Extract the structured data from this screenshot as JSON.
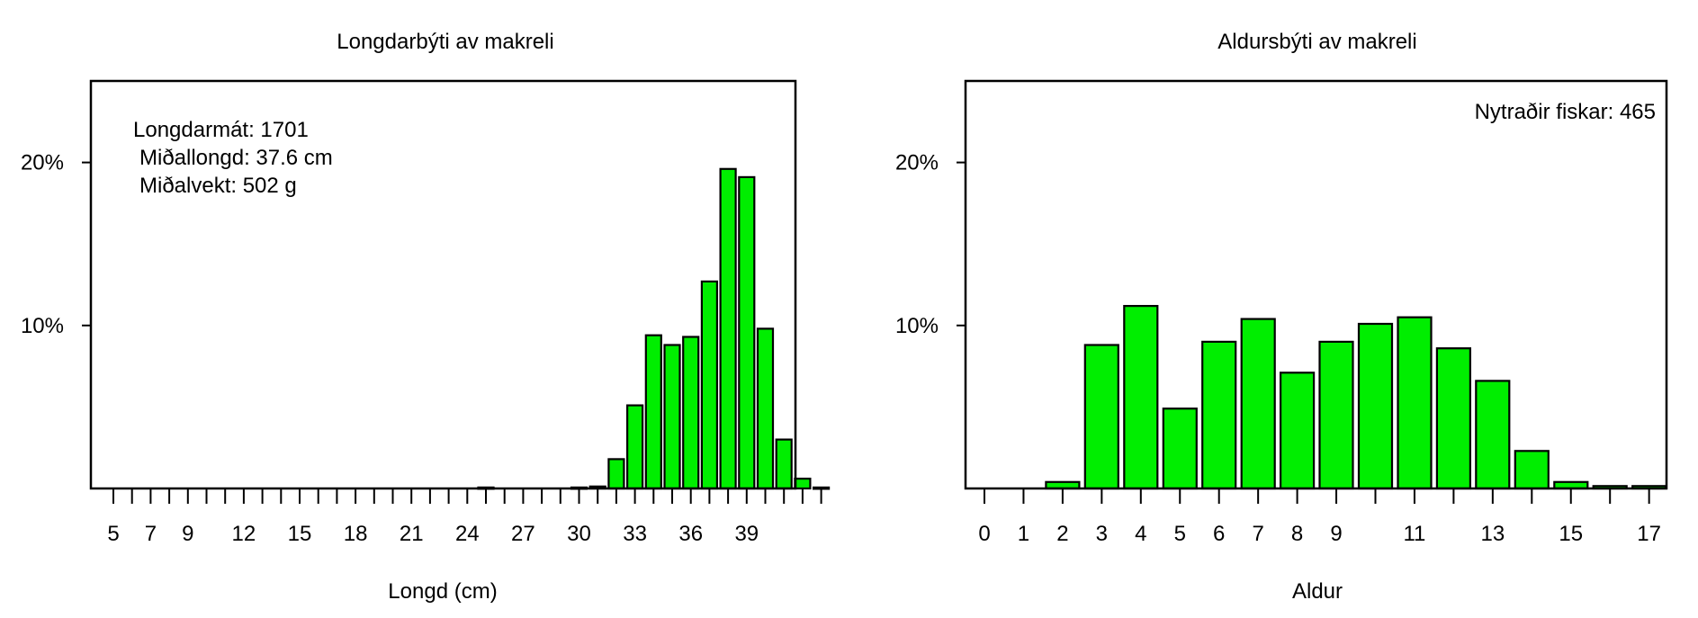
{
  "chart_data": [
    {
      "type": "bar",
      "title": "Longdarbýti av makreli",
      "xlabel": "Longd (cm)",
      "ylabel": "",
      "ylim": [
        0,
        0.25
      ],
      "yticks": [
        0.1,
        0.2
      ],
      "ytick_labels": [
        "10%",
        "20%"
      ],
      "x": [
        5,
        6,
        7,
        8,
        9,
        10,
        11,
        12,
        13,
        14,
        15,
        16,
        17,
        18,
        19,
        20,
        21,
        22,
        23,
        24,
        25,
        26,
        27,
        28,
        29,
        30,
        31,
        32,
        33,
        34,
        35,
        36,
        37,
        38,
        39,
        40,
        41,
        42,
        43
      ],
      "values": [
        0,
        0,
        0,
        0,
        0,
        0,
        0,
        0,
        0,
        0,
        0,
        0,
        0,
        0,
        0,
        0,
        0,
        0,
        0,
        0,
        0.0006,
        0,
        0,
        0,
        0,
        0.0006,
        0.0012,
        0.018,
        0.051,
        0.094,
        0.088,
        0.093,
        0.127,
        0.196,
        0.191,
        0.098,
        0.03,
        0.006,
        0.0006
      ],
      "xtick_labels": [
        "5",
        "7",
        "9",
        "12",
        "15",
        "18",
        "21",
        "24",
        "27",
        "30",
        "33",
        "36",
        "39"
      ],
      "bar_color": "#00ee00",
      "annotation": [
        "Longdarmát: 1701",
        "Miðallongd: 37.6 cm",
        "Miðalvekt: 502 g"
      ],
      "annotation_position": "top-left",
      "grid": false
    },
    {
      "type": "bar",
      "title": "Aldursbýti av makreli",
      "xlabel": "Aldur",
      "ylabel": "",
      "ylim": [
        0,
        0.25
      ],
      "yticks": [
        0.1,
        0.2
      ],
      "ytick_labels": [
        "10%",
        "20%"
      ],
      "x": [
        0,
        1,
        2,
        3,
        4,
        5,
        6,
        7,
        8,
        9,
        10,
        11,
        12,
        13,
        14,
        15,
        16,
        17
      ],
      "values": [
        0,
        0,
        0.004,
        0.088,
        0.112,
        0.049,
        0.09,
        0.104,
        0.071,
        0.09,
        0.101,
        0.105,
        0.086,
        0.066,
        0.023,
        0.004,
        0.0015,
        0.0015
      ],
      "xtick_labels": [
        "0",
        "1",
        "2",
        "3",
        "4",
        "5",
        "6",
        "7",
        "8",
        "9",
        "11",
        "13",
        "15",
        "17"
      ],
      "bar_color": "#00ee00",
      "annotation": [
        "Nytraðir fiskar: 465"
      ],
      "annotation_position": "top-right",
      "grid": false
    }
  ]
}
